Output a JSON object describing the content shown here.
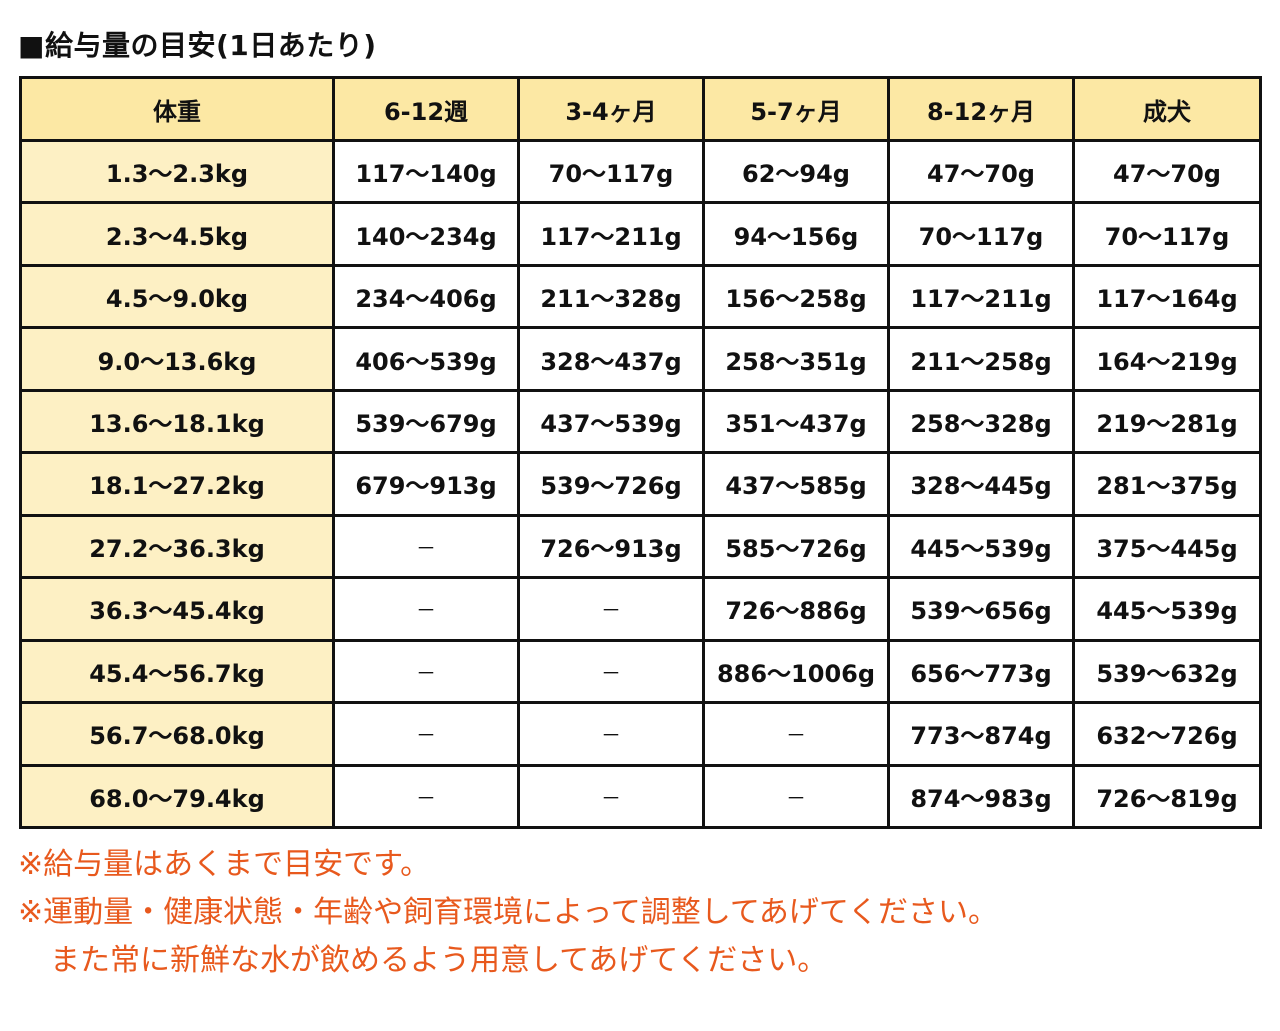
{
  "title": "■給与量の目安(1日あたり)",
  "table": {
    "headers": [
      "体重",
      "6-12週",
      "3-4ヶ月",
      "5-7ヶ月",
      "8-12ヶ月",
      "成犬"
    ],
    "rows": [
      {
        "weight": "1.3～2.3kg",
        "values": [
          "117～140g",
          "70～117g",
          "62～94g",
          "47～70g",
          "47～70g"
        ]
      },
      {
        "weight": "2.3～4.5kg",
        "values": [
          "140～234g",
          "117～211g",
          "94～156g",
          "70～117g",
          "70～117g"
        ]
      },
      {
        "weight": "4.5～9.0kg",
        "values": [
          "234～406g",
          "211～328g",
          "156～258g",
          "117～211g",
          "117～164g"
        ]
      },
      {
        "weight": "9.0～13.6kg",
        "values": [
          "406～539g",
          "328～437g",
          "258～351g",
          "211～258g",
          "164～219g"
        ]
      },
      {
        "weight": "13.6～18.1kg",
        "values": [
          "539～679g",
          "437～539g",
          "351～437g",
          "258～328g",
          "219～281g"
        ]
      },
      {
        "weight": "18.1～27.2kg",
        "values": [
          "679～913g",
          "539～726g",
          "437～585g",
          "328～445g",
          "281～375g"
        ]
      },
      {
        "weight": "27.2～36.3kg",
        "values": [
          "－",
          "726～913g",
          "585～726g",
          "445～539g",
          "375～445g"
        ]
      },
      {
        "weight": "36.3～45.4kg",
        "values": [
          "－",
          "－",
          "726～886g",
          "539～656g",
          "445～539g"
        ]
      },
      {
        "weight": "45.4～56.7kg",
        "values": [
          "－",
          "－",
          "886～1006g",
          "656～773g",
          "539～632g"
        ]
      },
      {
        "weight": "56.7～68.0kg",
        "values": [
          "－",
          "－",
          "－",
          "773～874g",
          "632～726g"
        ]
      },
      {
        "weight": "68.0～79.4kg",
        "values": [
          "－",
          "－",
          "－",
          "874～983g",
          "726～819g"
        ]
      }
    ]
  },
  "notes": [
    "※給与量はあくまで目安です。",
    "※運動量・健康状態・年齢や飼育環境によって調整してあげてください。",
    "また常に新鮮な水が飲めるよう用意してあげてください。"
  ],
  "colors": {
    "header_bg": "#fce8a4",
    "weight_col_bg": "#fdf0c4",
    "note_text": "#e8591d"
  }
}
